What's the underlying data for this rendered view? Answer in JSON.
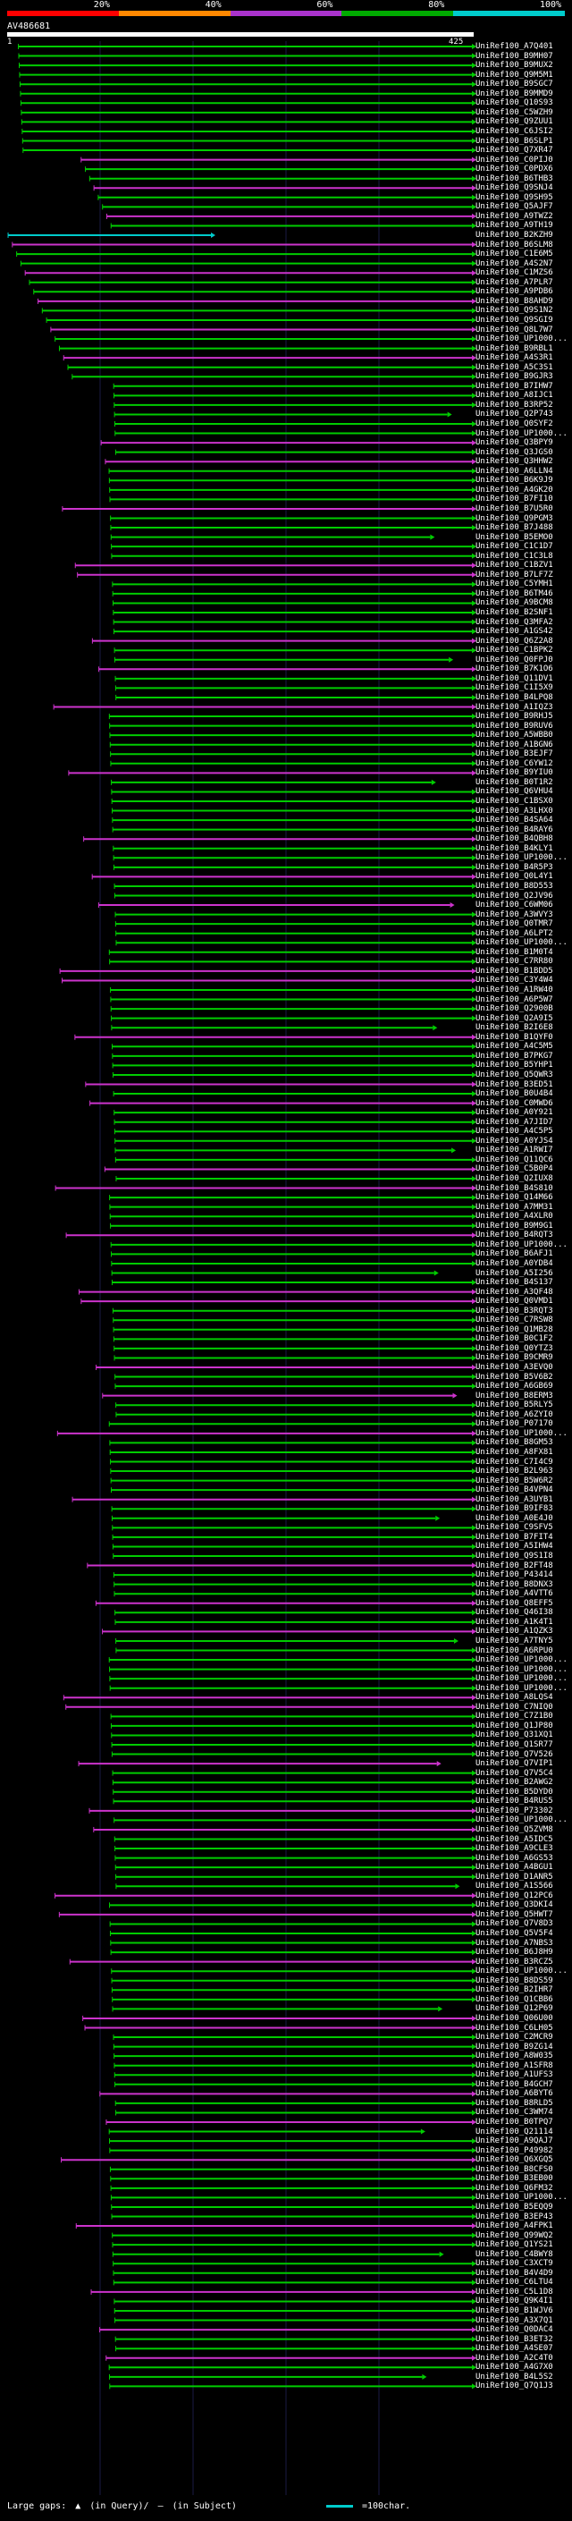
{
  "scale": {
    "labels": [
      "20%",
      "40%",
      "60%",
      "80%",
      "100%"
    ],
    "colors": [
      "#ff0000",
      "#ff8800",
      "#aa33cc",
      "#00aa00",
      "#00cccc"
    ]
  },
  "query": {
    "title": "AV486681",
    "start": "1",
    "end": "425"
  },
  "hits": [
    "UniRef100_A7Q401",
    "UniRef100_B9MH07",
    "UniRef100_B9MUX2",
    "UniRef100_Q9M5M1",
    "UniRef100_B9SGC7",
    "UniRef100_B9MMD9",
    "UniRef100_Q10S93",
    "UniRef100_C5WZH9",
    "UniRef100_Q9ZUU1",
    "UniRef100_C6JSI2",
    "UniRef100_B6SLP1",
    "UniRef100_Q7XR47",
    "UniRef100_C0PIJ0",
    "UniRef100_C0PDX6",
    "UniRef100_B6THB3",
    "UniRef100_Q9SNJ4",
    "UniRef100_Q9SH95",
    "UniRef100_Q5AJF7",
    "UniRef100_A9TWZ2",
    "UniRef100_A9TH19",
    "UniRef100_B2KZH9",
    "UniRef100_B6SLM8",
    "UniRef100_C1E6M5",
    "UniRef100_A4S2N7",
    "UniRef100_C1MZS6",
    "UniRef100_A7PLR7",
    "UniRef100_A9PDB6",
    "UniRef100_B8AHD9",
    "UniRef100_Q9S1N2",
    "UniRef100_Q9SGI9",
    "UniRef100_Q8L7W7",
    "UniRef100_UP1000...",
    "UniRef100_B9RBL1",
    "UniRef100_A4S3R1",
    "UniRef100_A5C3S1",
    "UniRef100_B9GJR3",
    "UniRef100_B7IHW7",
    "UniRef100_A8IJC1",
    "UniRef100_B3RP52",
    "UniRef100_Q2P743",
    "UniRef100_Q0SYF2",
    "UniRef100_UP1000...",
    "UniRef100_Q3BPY9",
    "UniRef100_Q3JGS0",
    "UniRef100_Q3HHW2",
    "UniRef100_A6LLN4",
    "UniRef100_B6K9J9",
    "UniRef100_A4GK20",
    "UniRef100_B7FI10",
    "UniRef100_B7U5R0",
    "UniRef100_Q9PGM3",
    "UniRef100_B7J488",
    "UniRef100_B5EMO0",
    "UniRef100_C1C1D7",
    "UniRef100_C1C3L8",
    "UniRef100_C1BZV1",
    "UniRef100_B7LF7Z",
    "UniRef100_C5YMH1",
    "UniRef100_B6TM46",
    "UniRef100_A9BCM8",
    "UniRef100_B2SNF1",
    "UniRef100_Q3MFA2",
    "UniRef100_A1GS42",
    "UniRef100_Q6Z2A8",
    "UniRef100_C1BPK2",
    "UniRef100_Q0FPJ0",
    "UniRef100_B7K1O6",
    "UniRef100_Q11DV1",
    "UniRef100_C1I5X9",
    "UniRef100_B4LPQ8",
    "UniRef100_A1IQZ3",
    "UniRef100_B9RHJ5",
    "UniRef100_B9RUV6",
    "UniRef100_A5WBB0",
    "UniRef100_A1BGN6",
    "UniRef100_B3EJF7",
    "UniRef100_C6YW12",
    "UniRef100_B9YIU0",
    "UniRef100_B0T1R2",
    "UniRef100_Q6VHU4",
    "UniRef100_C1BSX0",
    "UniRef100_A3LHX0",
    "UniRef100_B4SA64",
    "UniRef100_B4RAY6",
    "UniRef100_B4QBH8",
    "UniRef100_B4KLY1",
    "UniRef100_UP1000...",
    "UniRef100_B4R5P3",
    "UniRef100_Q0L4Y1",
    "UniRef100_B8D553",
    "UniRef100_Q2JV96",
    "UniRef100_C6WM06",
    "UniRef100_A3WVY3",
    "UniRef100_Q0TMR7",
    "UniRef100_A6LPT2",
    "UniRef100_UP1000...",
    "UniRef100_B1M0T4",
    "UniRef100_C7RR80",
    "UniRef100_B1BDD5",
    "UniRef100_C3Y4W4",
    "UniRef100_A1RW40",
    "UniRef100_A6P5W7",
    "UniRef100_Q2900B",
    "UniRef100_Q2A9I5",
    "UniRef100_B2I6E8",
    "UniRef100_B1QYF0",
    "UniRef100_A4C5M5",
    "UniRef100_B7PKG7",
    "UniRef100_B5YHP1",
    "UniRef100_Q5QWR3",
    "UniRef100_B3ED51",
    "UniRef100_B0U4B4",
    "UniRef100_C0MWD6",
    "UniRef100_A0Y921",
    "UniRef100_A7JID7",
    "UniRef100_A4C5P5",
    "UniRef100_A0YJS4",
    "UniRef100_A1RWI7",
    "UniRef100_Q11QC6",
    "UniRef100_C5B0P4",
    "UniRef100_Q2IUX8",
    "UniRef100_B4S810",
    "UniRef100_Q14M66",
    "UniRef100_A7MM31",
    "UniRef100_A4XLR0",
    "UniRef100_B9M9G1",
    "UniRef100_B4RQT3",
    "UniRef100_UP1000...",
    "UniRef100_B6AFJ1",
    "UniRef100_A0YDB4",
    "UniRef100_A5I256",
    "UniRef100_B4S137",
    "UniRef100_A3QF48",
    "UniRef100_Q0VMD1",
    "UniRef100_B3RQT3",
    "UniRef100_C7RSW8",
    "UniRef100_Q1MB28",
    "UniRef100_B0C1F2",
    "UniRef100_Q0YTZ3",
    "UniRef100_B9CMR9",
    "UniRef100_A3EVQ0",
    "UniRef100_B5V6B2",
    "UniRef100_A6GB69",
    "UniRef100_B8ERM3",
    "UniRef100_B5RLY5",
    "UniRef100_A6ZYI0",
    "UniRef100_P07170",
    "UniRef100_UP1000...",
    "UniRef100_B8GM53",
    "UniRef100_A8FX81",
    "UniRef100_C7I4C9",
    "UniRef100_B2L963",
    "UniRef100_B5W6R2",
    "UniRef100_B4VPN4",
    "UniRef100_A3UYB1",
    "UniRef100_B9IF83",
    "UniRef100_A0E4J0",
    "UniRef100_C9SFV5",
    "UniRef100_B7FIT4",
    "UniRef100_A5IHW4",
    "UniRef100_Q9S1I8",
    "UniRef100_B2FT48",
    "UniRef100_P43414",
    "UniRef100_B8DNX3",
    "UniRef100_A4VTT6",
    "UniRef100_Q8EFF5",
    "UniRef100_Q46I38",
    "UniRef100_A1K4T1",
    "UniRef100_A1QZK3",
    "UniRef100_A7TNY5",
    "UniRef100_A6RPU0",
    "UniRef100_UP1000...",
    "UniRef100_UP1000...",
    "UniRef100_UP1000...",
    "UniRef100_UP1000...",
    "UniRef100_A8LQS4",
    "UniRef100_C7NIQ0",
    "UniRef100_C7Z1B0",
    "UniRef100_Q1JP80",
    "UniRef100_Q31XQ1",
    "UniRef100_Q1SR77",
    "UniRef100_Q7V526",
    "UniRef100_Q7VIP1",
    "UniRef100_Q7V5C4",
    "UniRef100_B2AWG2",
    "UniRef100_B5DYD0",
    "UniRef100_B4RUS5",
    "UniRef100_P73302",
    "UniRef100_UP1000...",
    "UniRef100_Q5ZVM8",
    "UniRef100_A5IDC5",
    "UniRef100_A9CLE3",
    "UniRef100_A6GS53",
    "UniRef100_A4BGU1",
    "UniRef100_D1ANR5",
    "UniRef100_A1S566",
    "UniRef100_Q12PC6",
    "UniRef100_Q3DKI4",
    "UniRef100_Q5HWT7",
    "UniRef100_Q7V8D3",
    "UniRef100_Q5V5F4",
    "UniRef100_A7NBS3",
    "UniRef100_B6J8H9",
    "UniRef100_B3RCZ5",
    "UniRef100_UP1000...",
    "UniRef100_B8DS59",
    "UniRef100_B2IHR7",
    "UniRef100_Q1CBB6",
    "UniRef100_Q12P69",
    "UniRef100_Q06U00",
    "UniRef100_C6LH05",
    "UniRef100_C2MCR9",
    "UniRef100_B9ZG14",
    "UniRef100_A8W035",
    "UniRef100_A1SFR8",
    "UniRef100_A1UFS3",
    "UniRef100_B4GCH7",
    "UniRef100_A6BYT6",
    "UniRef100_B8RLD5",
    "UniRef100_C3WM74",
    "UniRef100_B0TPQ7",
    "UniRef100_Q21114",
    "UniRef100_A9QAJ7",
    "UniRef100_P49982",
    "UniRef100_Q6XGQ5",
    "UniRef100_B8CFS0",
    "UniRef100_B3EB00",
    "UniRef100_Q6FM32",
    "UniRef100_UP1000...",
    "UniRef100_B5EQQ9",
    "UniRef100_B3EP43",
    "UniRef100_A4FPK1",
    "UniRef100_Q99WQ2",
    "UniRef100_Q1YS21",
    "UniRef100_C4BWY8",
    "UniRef100_C3XCT9",
    "UniRef100_B4V4D9",
    "UniRef100_C6LTU4",
    "UniRef100_C5L1D8",
    "UniRef100_Q9K4I1",
    "UniRef100_B1WJV6",
    "UniRef100_A3X7Q1",
    "UniRef100_Q0DAC4",
    "UniRef100_B3ET32",
    "UniRef100_A4SE07",
    "UniRef100_A2C4T0",
    "UniRef100_A4G7X0",
    "UniRef100_B4L5S2",
    "UniRef100_Q7Q1J3"
  ],
  "legend": {
    "prefix": "Large gaps:",
    "query_gap": "(in Query)/",
    "subject_gap": "(in Subject)",
    "line_label": "=100char."
  }
}
